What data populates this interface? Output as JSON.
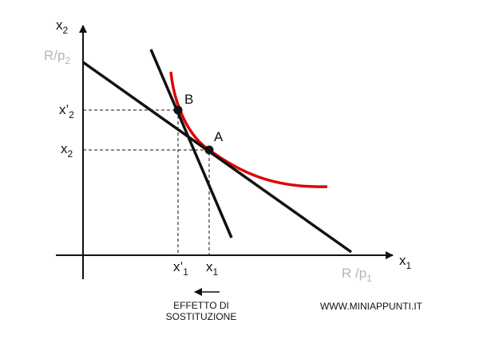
{
  "axes": {
    "y_label": {
      "text": "x",
      "sub": "2"
    },
    "y_intercept": {
      "text": "R/p",
      "sub": "2"
    },
    "x_label": {
      "text": "x",
      "sub": "1"
    },
    "x_intercept": {
      "text": "R /p",
      "sub": "1"
    }
  },
  "points": {
    "B": "B",
    "A": "A"
  },
  "ticks": {
    "x2_prime": {
      "text": "x’",
      "sub": "2"
    },
    "x2": {
      "text": "x",
      "sub": "2"
    },
    "x1_prime": {
      "text": "x’",
      "sub": "1"
    },
    "x1": {
      "text": "x",
      "sub": "1"
    }
  },
  "caption": {
    "line1": "EFFETTO DI",
    "line2": "SOSTITUZIONE"
  },
  "watermark": "WWW.MINIAPPUNTI.IT"
}
